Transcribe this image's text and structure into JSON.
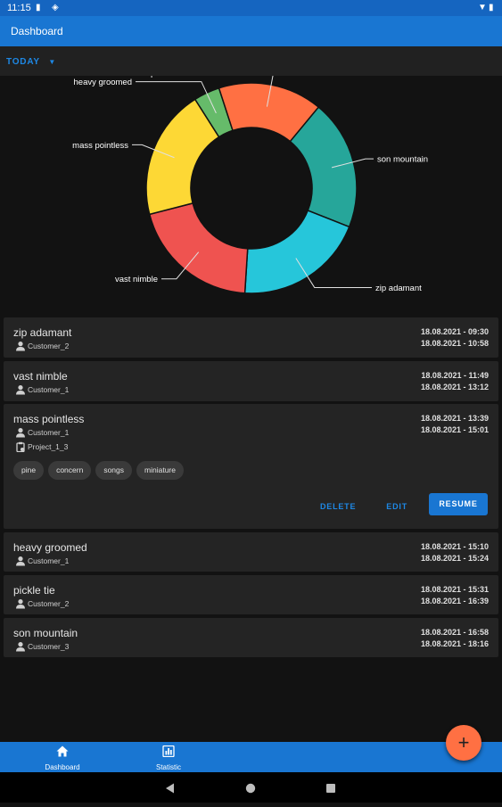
{
  "status_bar": {
    "time": "11:15"
  },
  "app_bar": {
    "title": "Dashboard"
  },
  "filter": {
    "selected": "TODAY"
  },
  "chart_data": {
    "type": "pie",
    "donut": true,
    "categories": [
      "son mountain",
      "zip adamant",
      "vast nimble",
      "mass pointless",
      "heavy groomed",
      "pickle tie"
    ],
    "values": [
      20,
      20,
      20,
      20,
      4,
      16
    ],
    "colors": [
      "#26a69a",
      "#26c6da",
      "#ef5350",
      "#fdd835",
      "#66bb6a",
      "#ff7043"
    ],
    "title": "",
    "legend": "none"
  },
  "entries": [
    {
      "name": "zip adamant",
      "customer": "Customer_2",
      "start": "18.08.2021 - 09:30",
      "end": "18.08.2021 - 10:58"
    },
    {
      "name": "vast nimble",
      "customer": "Customer_1",
      "start": "18.08.2021 - 11:49",
      "end": "18.08.2021 - 13:12"
    },
    {
      "name": "mass pointless",
      "customer": "Customer_1",
      "project": "Project_1_3",
      "start": "18.08.2021 - 13:39",
      "end": "18.08.2021 - 15:01",
      "tags": [
        "pine",
        "concern",
        "songs",
        "miniature"
      ]
    },
    {
      "name": "heavy groomed",
      "customer": "Customer_1",
      "start": "18.08.2021 - 15:10",
      "end": "18.08.2021 - 15:24"
    },
    {
      "name": "pickle tie",
      "customer": "Customer_2",
      "start": "18.08.2021 - 15:31",
      "end": "18.08.2021 - 16:39"
    },
    {
      "name": "son mountain",
      "customer": "Customer_3",
      "start": "18.08.2021 - 16:58",
      "end": "18.08.2021 - 18:16"
    }
  ],
  "actions": {
    "delete": "DELETE",
    "edit": "EDIT",
    "resume": "RESUME"
  },
  "bottom_nav": {
    "dashboard": "Dashboard",
    "statistic": "Statistic"
  },
  "fab": {
    "icon": "plus-icon",
    "symbol": "+"
  }
}
